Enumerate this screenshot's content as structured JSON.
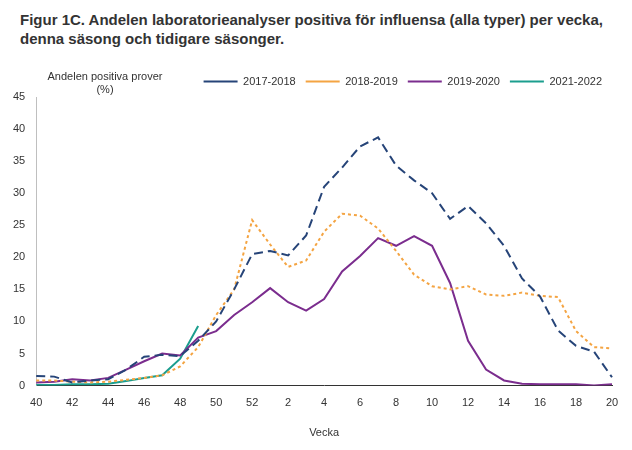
{
  "chart_data": {
    "type": "line",
    "title": "Figur 1C. Andelen laboratorieanalyser positiva för influensa (alla typer) per vecka, denna säsong och tidigare säsonger.",
    "x_label": "Vecka",
    "y_label": "Andelen positiva prover (%)",
    "categories": [
      40,
      null,
      42,
      null,
      44,
      null,
      46,
      null,
      48,
      null,
      50,
      null,
      52,
      null,
      2,
      null,
      4,
      null,
      6,
      null,
      8,
      null,
      10,
      null,
      12,
      null,
      14,
      null,
      16,
      null,
      18,
      null,
      20
    ],
    "series": [
      {
        "name": "2017-2018",
        "color": "#264478",
        "line_style": "dashed",
        "values": [
          1.5,
          1.4,
          0.5,
          0.8,
          1.0,
          2.5,
          4.5,
          4.8,
          4.6,
          7.0,
          10.0,
          15.0,
          20.5,
          21.0,
          20.3,
          23.4,
          31.0,
          34.0,
          37.3,
          38.7,
          34.3,
          32.0,
          30.0,
          26.0,
          28.0,
          25.3,
          21.8,
          16.7,
          13.9,
          8.6,
          6.2,
          5.3,
          1.3
        ]
      },
      {
        "name": "2018-2019",
        "color": "#f4a442",
        "line_style": "dotted",
        "values": [
          0.8,
          0.8,
          0.6,
          0.5,
          0.6,
          0.9,
          1.2,
          1.6,
          3.0,
          6.0,
          11.0,
          15.0,
          25.8,
          22.0,
          18.5,
          19.5,
          24.0,
          26.8,
          26.5,
          24.5,
          21.0,
          17.3,
          15.5,
          15.0,
          15.5,
          14.2,
          14.0,
          14.5,
          14.0,
          13.8,
          8.5,
          6.0,
          5.8
        ]
      },
      {
        "name": "2019-2020",
        "color": "#7b2d8e",
        "line_style": "solid",
        "values": [
          0.5,
          0.6,
          1.0,
          0.8,
          1.2,
          2.5,
          3.8,
          5.0,
          4.7,
          7.5,
          8.5,
          11.0,
          13.0,
          15.2,
          13.0,
          11.7,
          13.5,
          17.8,
          20.2,
          23.0,
          21.8,
          23.3,
          21.8,
          16.0,
          7.0,
          2.5,
          0.8,
          0.3,
          0.2,
          0.2,
          0.2,
          0.0,
          0.2
        ]
      },
      {
        "name": "2021-2022",
        "color": "#1b9e8e",
        "line_style": "solid",
        "values": [
          0.1,
          0.1,
          0.2,
          0.2,
          0.3,
          0.7,
          1.2,
          1.6,
          4.2,
          9.3,
          null,
          null,
          null,
          null,
          null,
          null,
          null,
          null,
          null,
          null,
          null,
          null,
          null,
          null,
          null,
          null,
          null,
          null,
          null,
          null,
          null,
          null,
          null
        ]
      }
    ],
    "ylim": [
      0,
      45
    ],
    "yticks": [
      0,
      5,
      10,
      15,
      20,
      25,
      30,
      35,
      40,
      45
    ],
    "grid": false,
    "legend": "top-right"
  }
}
